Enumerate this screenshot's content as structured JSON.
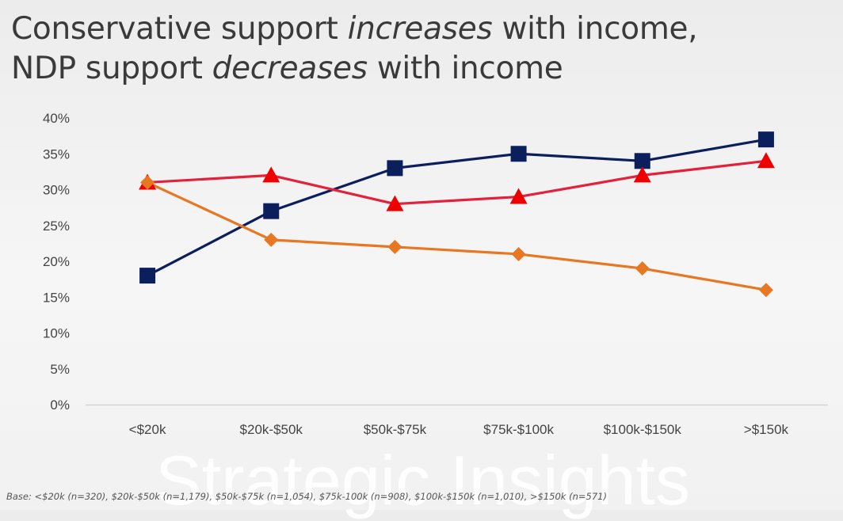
{
  "title": {
    "line1_a": "Conservative support ",
    "line1_b": "increases",
    "line1_c": " with income,",
    "line2_a": "NDP support ",
    "line2_b": "decreases",
    "line2_c": " with income"
  },
  "watermark": "Strategic Insights",
  "footnote": "Base: <$20k (n=320), $20k-$50k (n=1,179), $50k-$75k (n=1,054), $75k-100k (n=908), $100k-$150k (n=1,010), >$150k (n=571)",
  "chart_data": {
    "type": "line",
    "categories": [
      "<$20k",
      "$20k-$50k",
      "$50k-$75k",
      "$75k-$100k",
      "$100k-$150k",
      ">$150k"
    ],
    "ylim": [
      0,
      40
    ],
    "yticks": [
      0,
      5,
      10,
      15,
      20,
      25,
      30,
      35,
      40
    ],
    "ytick_labels": [
      "0%",
      "5%",
      "10%",
      "15%",
      "20%",
      "25%",
      "30%",
      "35%",
      "40%"
    ],
    "grid": false,
    "legend": "none",
    "series": [
      {
        "values": [
          18,
          27,
          33,
          35,
          34,
          37
        ],
        "color": "#0b1f5c",
        "marker": "square"
      },
      {
        "values": [
          31,
          32,
          28,
          29,
          32,
          34
        ],
        "color": "#e4213b",
        "marker": "triangle",
        "marker_color": "#ee0000"
      },
      {
        "values": [
          31,
          23,
          22,
          21,
          19,
          16
        ],
        "color": "#e87722",
        "marker": "diamond"
      }
    ]
  }
}
